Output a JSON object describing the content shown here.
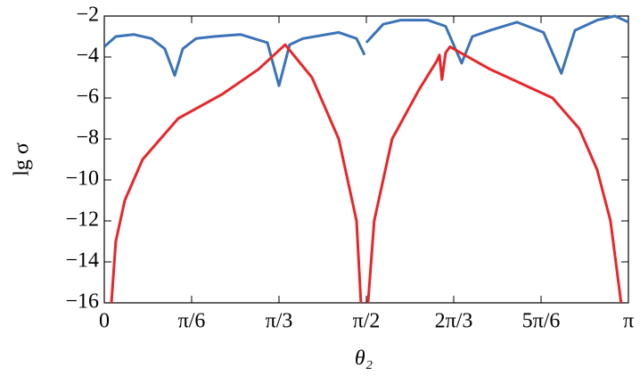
{
  "chart_data": {
    "type": "line",
    "xlabel": "θ₂",
    "ylabel": "lg σ",
    "xlim": [
      0,
      3.1416
    ],
    "ylim": [
      -16,
      -2
    ],
    "xticks": [
      {
        "value": 0,
        "label": "0"
      },
      {
        "value": 0.5236,
        "label": "π/6"
      },
      {
        "value": 1.0472,
        "label": "π/3"
      },
      {
        "value": 1.5708,
        "label": "π/2"
      },
      {
        "value": 2.0944,
        "label": "2π/3"
      },
      {
        "value": 2.618,
        "label": "5π/6"
      },
      {
        "value": 3.1416,
        "label": "π"
      }
    ],
    "yticks": [
      {
        "value": -2,
        "label": "−2"
      },
      {
        "value": -4,
        "label": "−4"
      },
      {
        "value": -6,
        "label": "−6"
      },
      {
        "value": -8,
        "label": "−8"
      },
      {
        "value": -10,
        "label": "−10"
      },
      {
        "value": -12,
        "label": "−12"
      },
      {
        "value": -14,
        "label": "−14"
      },
      {
        "value": -16,
        "label": "−16"
      }
    ],
    "grid": false,
    "series": [
      {
        "color": "#3a73b8",
        "x": [
          0,
          0.069,
          0.176,
          0.283,
          0.363,
          0.422,
          0.47,
          0.55,
          0.657,
          0.817,
          0.978,
          1.047,
          1.111,
          1.191,
          1.405,
          1.512,
          1.56,
          1.565,
          1.57,
          1.672,
          1.778,
          1.939,
          2.046,
          2.142,
          2.206,
          2.313,
          2.473,
          2.633,
          2.74,
          2.821,
          2.954,
          3.061,
          3.142
        ],
        "values": [
          -3.5,
          -3.0,
          -2.9,
          -3.1,
          -3.6,
          -4.9,
          -3.6,
          -3.1,
          -3.0,
          -2.9,
          -3.3,
          -5.4,
          -3.4,
          -3.1,
          -2.8,
          -3.1,
          -3.9,
          null,
          -3.3,
          -2.4,
          -2.2,
          -2.2,
          -2.5,
          -4.3,
          -3.0,
          -2.7,
          -2.3,
          -2.8,
          -4.8,
          -2.7,
          -2.2,
          -2.0,
          -2.3
        ]
      },
      {
        "color": "#e8262a",
        "x": [
          0.043,
          0.069,
          0.123,
          0.23,
          0.443,
          0.71,
          0.924,
          1.084,
          1.245,
          1.405,
          1.512,
          1.538,
          1.56,
          1.581,
          1.618,
          1.725,
          1.886,
          1.993,
          2.009,
          2.024,
          2.046,
          2.072,
          2.313,
          2.687,
          2.847,
          2.954,
          3.034,
          3.098
        ],
        "values": [
          -16,
          -13,
          -11,
          -9,
          -7,
          -5.8,
          -4.6,
          -3.4,
          -5,
          -8,
          -12,
          -16,
          null,
          -16,
          -12,
          -8,
          -5.6,
          -4.2,
          -3.9,
          -5.1,
          -3.8,
          -3.5,
          -4.6,
          -6,
          -7.5,
          -9.5,
          -12,
          -16
        ]
      }
    ]
  }
}
